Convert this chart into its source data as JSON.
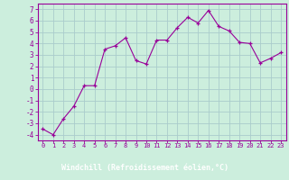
{
  "x": [
    0,
    1,
    2,
    3,
    4,
    5,
    6,
    7,
    8,
    9,
    10,
    11,
    12,
    13,
    14,
    15,
    16,
    17,
    18,
    19,
    20,
    21,
    22,
    23
  ],
  "y": [
    -3.5,
    -4.0,
    -2.6,
    -1.5,
    0.3,
    0.3,
    3.5,
    3.8,
    4.5,
    2.5,
    2.2,
    4.3,
    4.3,
    5.4,
    6.3,
    5.8,
    6.9,
    5.5,
    5.1,
    4.1,
    4.0,
    2.3,
    2.7,
    3.2
  ],
  "line_color": "#990099",
  "marker": "+",
  "marker_size": 3,
  "bg_color": "#cceedd",
  "grid_color": "#aacccc",
  "xlabel": "Windchill (Refroidissement éolien,°C)",
  "xlabel_color": "#ffffff",
  "xlabel_bg": "#990099",
  "ylabel_ticks": [
    -4,
    -3,
    -2,
    -1,
    0,
    1,
    2,
    3,
    4,
    5,
    6,
    7
  ],
  "xlim": [
    -0.5,
    23.5
  ],
  "ylim": [
    -4.5,
    7.5
  ],
  "xtick_labels": [
    "0",
    "1",
    "2",
    "3",
    "4",
    "5",
    "6",
    "7",
    "8",
    "9",
    "10",
    "11",
    "12",
    "13",
    "14",
    "15",
    "16",
    "17",
    "18",
    "19",
    "20",
    "21",
    "22",
    "23"
  ],
  "tick_color": "#990099",
  "spine_color": "#990099",
  "tick_fontsize": 5.0,
  "ytick_fontsize": 5.5,
  "xlabel_fontsize": 6.0
}
